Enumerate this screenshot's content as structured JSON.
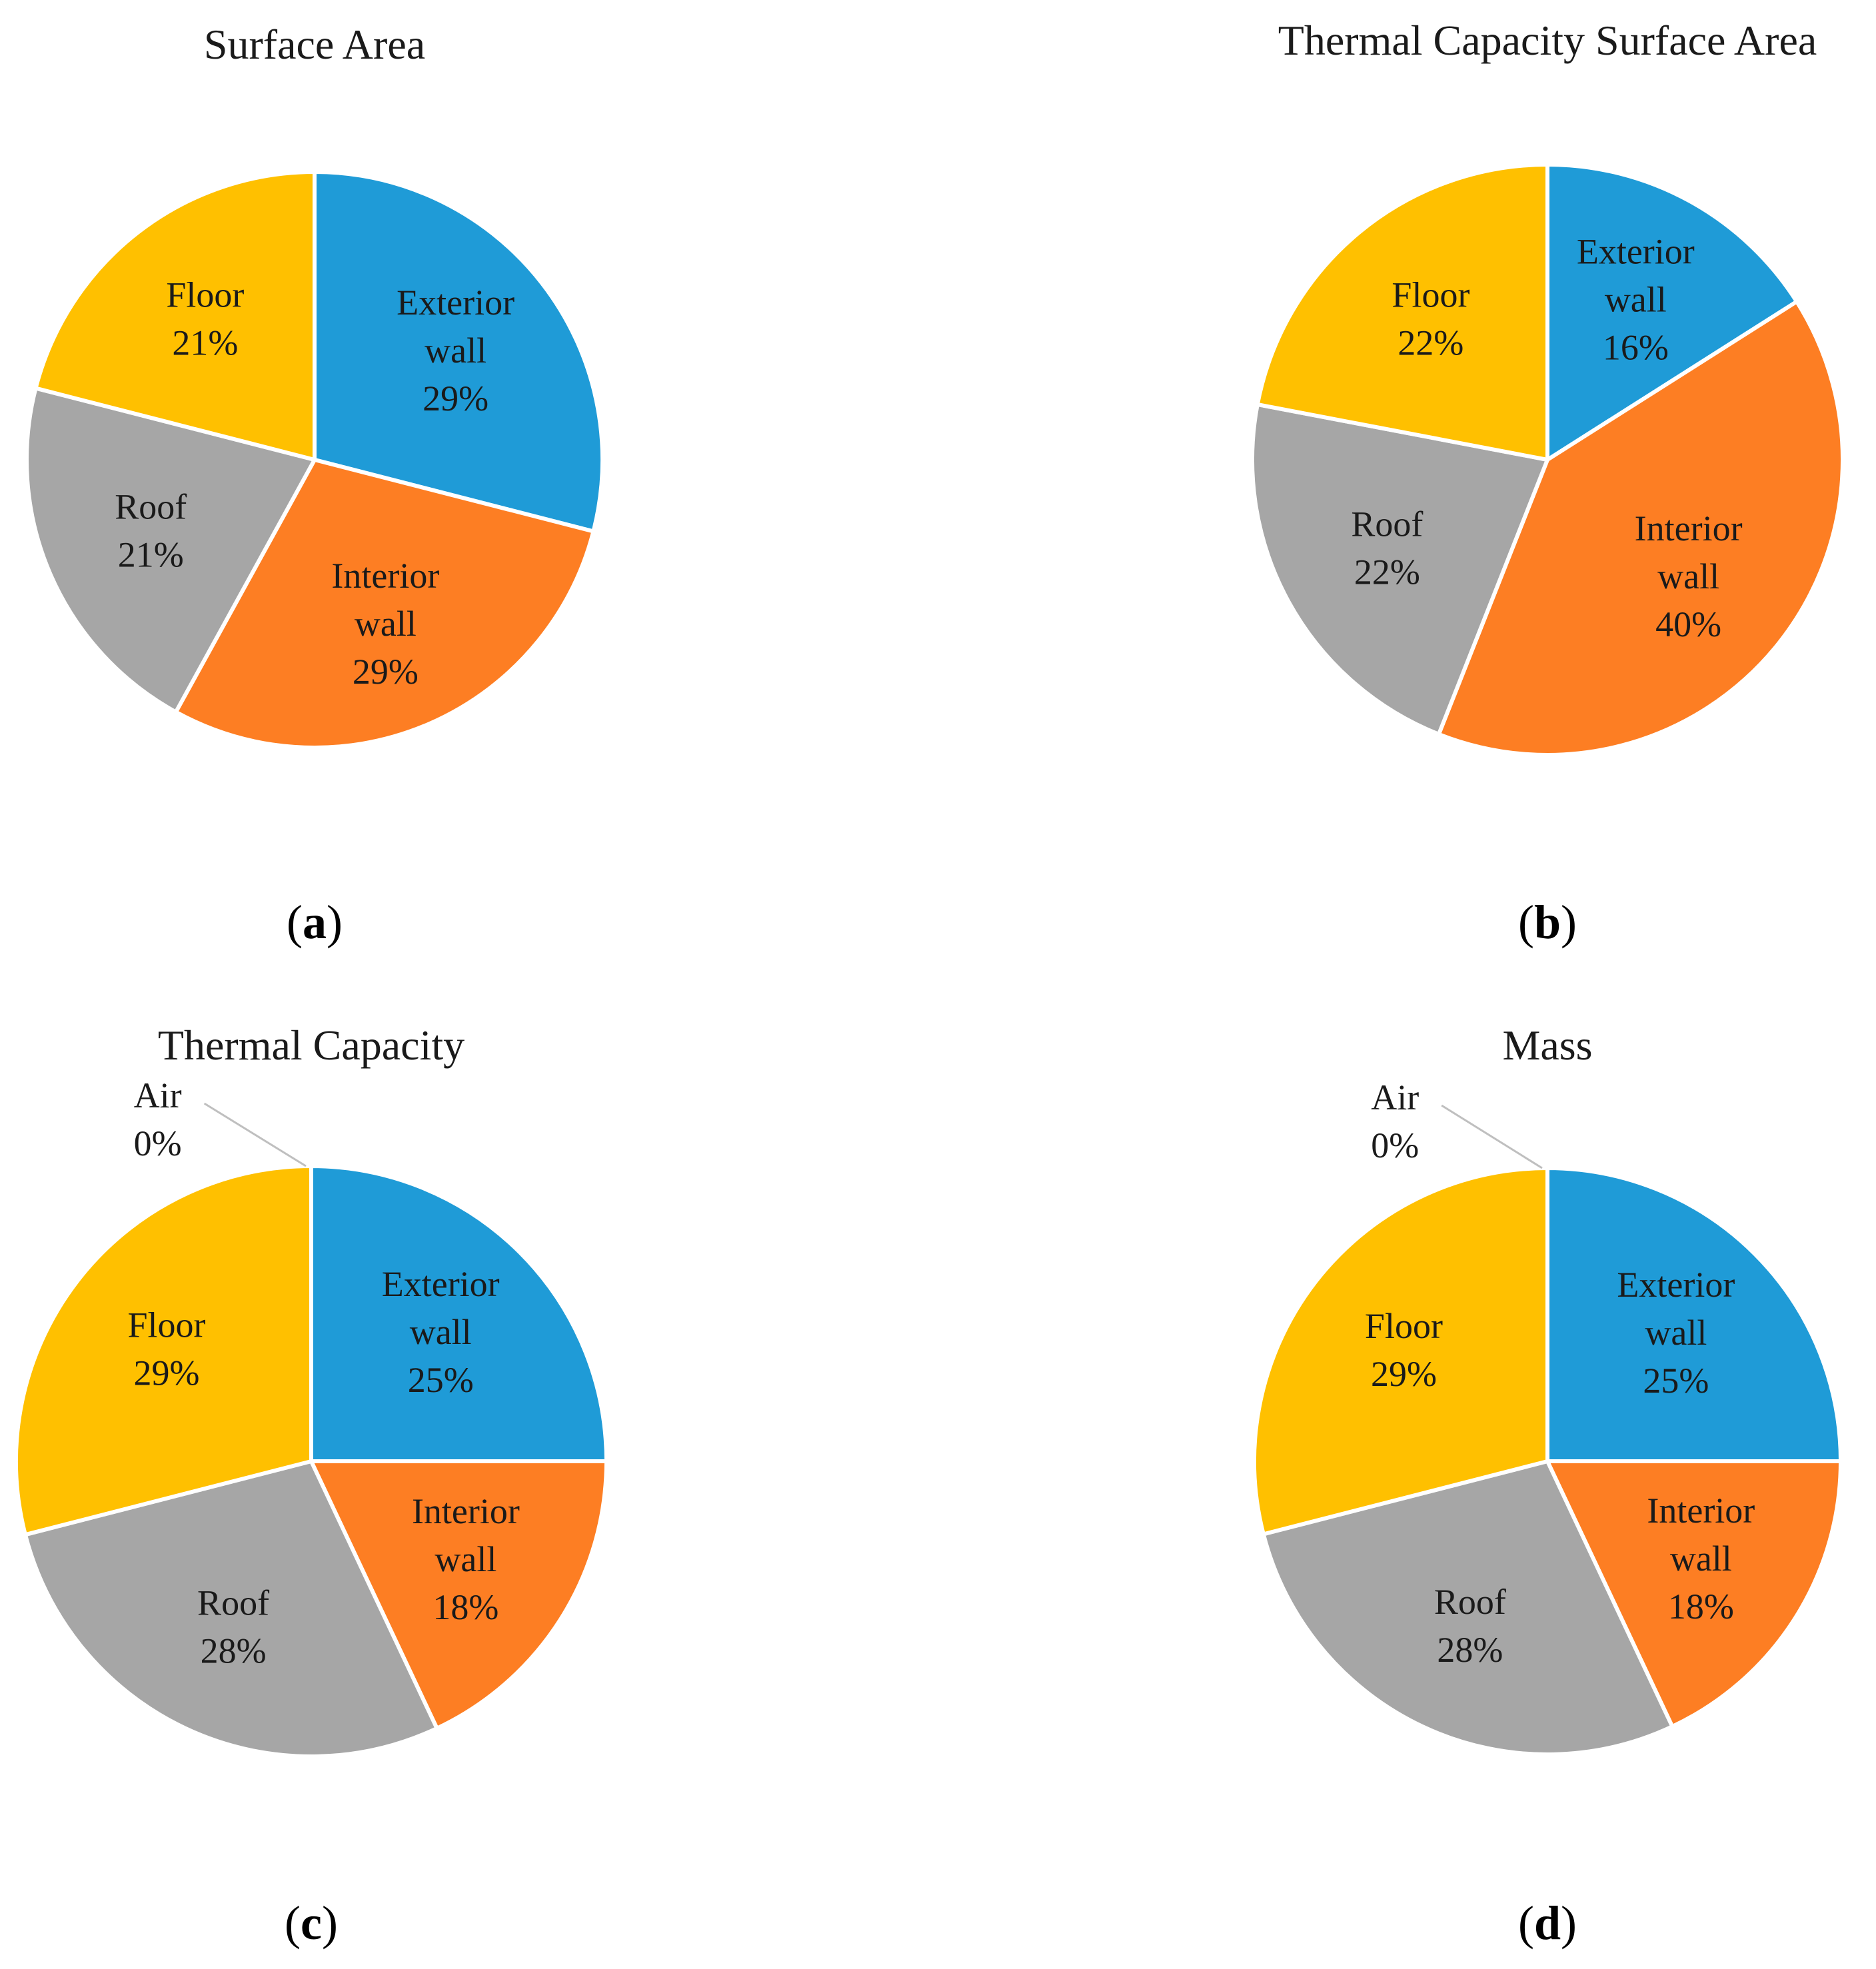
{
  "chart_data": [
    {
      "type": "pie",
      "panel": "a",
      "title": "Surface Area",
      "slices": [
        {
          "name": "Exterior wall",
          "label_lines": [
            "Exterior",
            "wall"
          ],
          "value": 29,
          "percent_label": "29%",
          "color": "#1f9bd7"
        },
        {
          "name": "Interior wall",
          "label_lines": [
            "Interior",
            "wall"
          ],
          "value": 29,
          "percent_label": "29%",
          "color": "#fd7e23"
        },
        {
          "name": "Roof",
          "label_lines": [
            "Roof"
          ],
          "value": 21,
          "percent_label": "21%",
          "color": "#a6a6a6"
        },
        {
          "name": "Floor",
          "label_lines": [
            "Floor"
          ],
          "value": 21,
          "percent_label": "21%",
          "color": "#ffc000"
        }
      ]
    },
    {
      "type": "pie",
      "panel": "b",
      "title": "Thermal  Capacity Surface Area",
      "slices": [
        {
          "name": "Exterior wall",
          "label_lines": [
            "Exterior",
            "wall"
          ],
          "value": 16,
          "percent_label": "16%",
          "color": "#1f9bd7"
        },
        {
          "name": "Interior wall",
          "label_lines": [
            "Interior",
            "wall"
          ],
          "value": 40,
          "percent_label": "40%",
          "color": "#fd7e23"
        },
        {
          "name": "Roof",
          "label_lines": [
            "Roof"
          ],
          "value": 22,
          "percent_label": "22%",
          "color": "#a6a6a6"
        },
        {
          "name": "Floor",
          "label_lines": [
            "Floor"
          ],
          "value": 22,
          "percent_label": "22%",
          "color": "#ffc000"
        }
      ]
    },
    {
      "type": "pie",
      "panel": "c",
      "title": "Thermal  Capacity",
      "slices": [
        {
          "name": "Exterior wall",
          "label_lines": [
            "Exterior",
            "wall"
          ],
          "value": 25,
          "percent_label": "25%",
          "color": "#1f9bd7"
        },
        {
          "name": "Interior wall",
          "label_lines": [
            "Interior",
            "wall"
          ],
          "value": 18,
          "percent_label": "18%",
          "color": "#fd7e23"
        },
        {
          "name": "Roof",
          "label_lines": [
            "Roof"
          ],
          "value": 28,
          "percent_label": "28%",
          "color": "#a6a6a6"
        },
        {
          "name": "Floor",
          "label_lines": [
            "Floor"
          ],
          "value": 29,
          "percent_label": "29%",
          "color": "#ffc000"
        },
        {
          "name": "Air",
          "label_lines": [
            "Air"
          ],
          "value": 0,
          "percent_label": "0%",
          "color": "#5b9bd5"
        }
      ]
    },
    {
      "type": "pie",
      "panel": "d",
      "title": "Mass",
      "slices": [
        {
          "name": "Exterior wall",
          "label_lines": [
            "Exterior",
            "wall"
          ],
          "value": 25,
          "percent_label": "25%",
          "color": "#1f9bd7"
        },
        {
          "name": "Interior wall",
          "label_lines": [
            "Interior",
            "wall"
          ],
          "value": 18,
          "percent_label": "18%",
          "color": "#fd7e23"
        },
        {
          "name": "Roof",
          "label_lines": [
            "Roof"
          ],
          "value": 28,
          "percent_label": "28%",
          "color": "#a6a6a6"
        },
        {
          "name": "Floor",
          "label_lines": [
            "Floor"
          ],
          "value": 29,
          "percent_label": "29%",
          "color": "#ffc000"
        },
        {
          "name": "Air",
          "label_lines": [
            "Air"
          ],
          "value": 0,
          "percent_label": "0%",
          "color": "#5b9bd5"
        }
      ]
    }
  ],
  "panel_labels": {
    "a": {
      "open": "(",
      "letter": "a",
      "close": ")"
    },
    "b": {
      "open": "(",
      "letter": "b",
      "close": ")"
    },
    "c": {
      "open": "(",
      "letter": "c",
      "close": ")"
    },
    "d": {
      "open": "(",
      "letter": "d",
      "close": ")"
    }
  }
}
